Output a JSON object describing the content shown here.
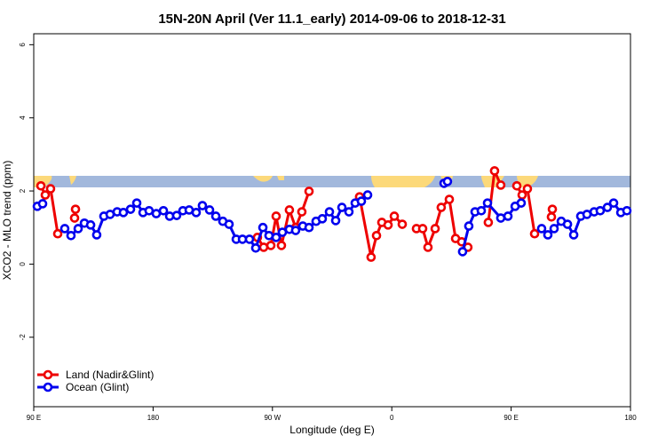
{
  "chart_data": {
    "type": "line",
    "title": "15N-20N April (Ver 11.1_early)   2014-09-06 to 2018-12-31",
    "xlabel": "Longitude (deg E)",
    "ylabel": "XCO2 - MLO trend (ppm)",
    "xlim": [
      90,
      540
    ],
    "ylim": [
      -3.9,
      6.3
    ],
    "xticks": [
      {
        "value": 90,
        "label": "90 E"
      },
      {
        "value": 180,
        "label": "180"
      },
      {
        "value": 270,
        "label": "90 W"
      },
      {
        "value": 360,
        "label": "0"
      },
      {
        "value": 450,
        "label": "90 E"
      },
      {
        "value": 540,
        "label": "180"
      }
    ],
    "yticks": [
      -2,
      0,
      2,
      4,
      6
    ],
    "legend": "lower left",
    "series": [
      {
        "name": "Land (Nadir&Glint)",
        "color": "#ee0000",
        "x": [
          95.4,
          98.7,
          102.7,
          108.1,
          null,
          120.8,
          121.5,
          null,
          258.7,
          263.4,
          268.8,
          272.8,
          276.8,
          282.8,
          287.5,
          292.2,
          297.6,
          null,
          335.7,
          344.4,
          348.5,
          352.5,
          357.2,
          361.9,
          367.9,
          null,
          378.6,
          383.3,
          387.3,
          392.7,
          397.3,
          403.4,
          408.1,
          412.7,
          417.4,
          null,
          432.8,
          437.5,
          442.2,
          null,
          454.3,
          458.3,
          462.3,
          467.7,
          null,
          480.4,
          481.1
        ],
        "values": [
          2.14,
          1.89,
          2.06,
          0.83,
          null,
          1.26,
          1.5,
          null,
          0.73,
          0.46,
          0.51,
          1.31,
          0.51,
          1.48,
          1.0,
          1.43,
          1.99,
          null,
          1.84,
          0.19,
          0.78,
          1.14,
          1.07,
          1.31,
          1.09,
          null,
          0.97,
          0.97,
          0.46,
          0.97,
          1.55,
          1.77,
          0.7,
          0.61,
          0.46,
          null,
          1.14,
          2.55,
          2.16,
          null,
          2.14,
          1.89,
          2.06,
          0.83,
          null,
          1.29,
          1.5
        ]
      },
      {
        "name": "Ocean (Glint)",
        "color": "#0000ee",
        "x": [
          92.7,
          96.7,
          null,
          113.4,
          118.1,
          123.5,
          128.2,
          132.9,
          137.5,
          142.9,
          147.6,
          152.9,
          157.6,
          163.0,
          167.7,
          172.4,
          177.0,
          182.4,
          187.8,
          192.5,
          197.8,
          202.5,
          207.2,
          212.5,
          217.2,
          222.6,
          227.3,
          232.6,
          237.3,
          242.7,
          247.4,
          252.7,
          257.4,
          262.8,
          267.4,
          272.8,
          277.5,
          282.8,
          287.5,
          292.9,
          297.6,
          302.9,
          307.6,
          313.0,
          317.7,
          322.4,
          327.7,
          332.4,
          337.1,
          341.8,
          null,
          399.4,
          402.0,
          null,
          413.4,
          418.1,
          422.8,
          427.5,
          432.2,
          442.2,
          447.6,
          453.0,
          457.6,
          null,
          473.0,
          477.7,
          482.4,
          487.8,
          492.5,
          497.2,
          502.5,
          507.2,
          512.6,
          517.2,
          522.6,
          527.3,
          532.7,
          537.3
        ],
        "values": [
          1.58,
          1.65,
          null,
          0.97,
          0.78,
          0.97,
          1.12,
          1.07,
          0.8,
          1.31,
          1.36,
          1.43,
          1.41,
          1.5,
          1.67,
          1.41,
          1.46,
          1.38,
          1.46,
          1.31,
          1.33,
          1.46,
          1.48,
          1.41,
          1.6,
          1.48,
          1.31,
          1.17,
          1.09,
          0.68,
          0.68,
          0.68,
          0.44,
          1.0,
          0.78,
          0.73,
          0.87,
          0.95,
          0.92,
          1.04,
          1.0,
          1.17,
          1.24,
          1.43,
          1.19,
          1.55,
          1.43,
          1.67,
          1.72,
          1.89,
          null,
          2.21,
          2.26,
          null,
          0.34,
          1.04,
          1.43,
          1.46,
          1.67,
          1.26,
          1.31,
          1.58,
          1.67,
          null,
          0.97,
          0.8,
          0.97,
          1.17,
          1.09,
          0.8,
          1.31,
          1.36,
          1.43,
          1.46,
          1.55,
          1.67,
          1.41,
          1.46
        ]
      }
    ]
  }
}
